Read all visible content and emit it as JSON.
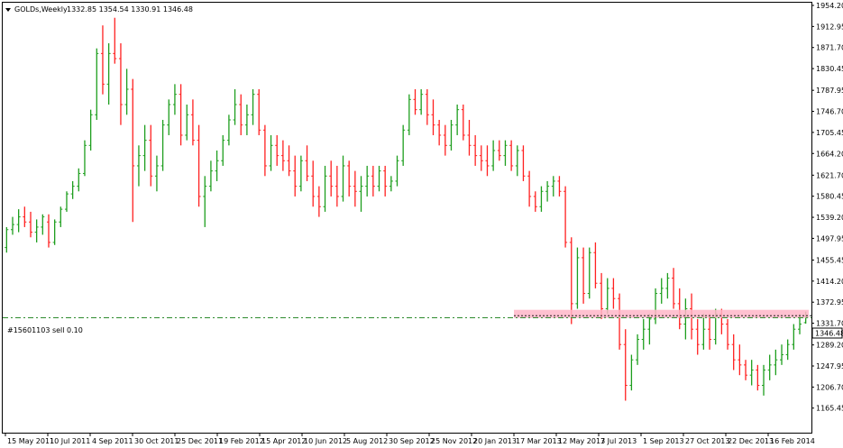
{
  "header": {
    "symbol": "GOLDs,Weekly",
    "ohlc": "1332.85 1354.54 1330.91 1346.48",
    "arrow_icon": "triangle-down-icon"
  },
  "colors": {
    "background": "#ffffff",
    "up_bar": "#1e9e1e",
    "down_bar": "#ff2020",
    "order_line": "#2e8b2e",
    "highlight_zone": "#ffb6c8",
    "price_line": "#000000",
    "price_box_bg": "#ffffff"
  },
  "order": {
    "label": "#15601103 sell 0.10",
    "price": 1342.5
  },
  "current_price": {
    "label": "1346.48",
    "value": 1346.48
  },
  "highlight_zone": {
    "from_date": "17 Mar 2013",
    "price_low": 1342,
    "price_high": 1358
  },
  "chart_data": {
    "type": "ohlc",
    "title": "",
    "xlabel": "",
    "ylabel": "",
    "ylim": [
      1165.0,
      1954.2
    ],
    "grid": false,
    "y_ticks": [
      "1954.20",
      "1912.95",
      "1871.70",
      "1830.45",
      "1787.95",
      "1746.70",
      "1705.45",
      "1664.20",
      "1621.70",
      "1580.45",
      "1539.20",
      "1497.95",
      "1455.45",
      "1414.20",
      "1372.95",
      "1331.70",
      "1289.20",
      "1247.95",
      "1206.70",
      "1165.45"
    ],
    "x_ticks": [
      "15 May 2011",
      "10 Jul 2011",
      "4 Sep 2011",
      "30 Oct 2011",
      "25 Dec 2011",
      "19 Feb 2012",
      "15 Apr 2012",
      "10 Jun 2012",
      "5 Aug 2012",
      "30 Sep 2012",
      "25 Nov 2012",
      "20 Jan 2013",
      "17 Mar 2013",
      "12 May 2013",
      "7 Jul 2013",
      "1 Sep 2013",
      "27 Oct 2013",
      "22 Dec 2013",
      "16 Feb 2014"
    ],
    "series": [
      {
        "values": [
          [
            1480,
            1520,
            1470,
            1515
          ],
          [
            1515,
            1540,
            1505,
            1525
          ],
          [
            1525,
            1555,
            1510,
            1540
          ],
          [
            1540,
            1560,
            1520,
            1530
          ],
          [
            1530,
            1550,
            1500,
            1510
          ],
          [
            1510,
            1535,
            1490,
            1520
          ],
          [
            1520,
            1545,
            1505,
            1540
          ],
          [
            1530,
            1545,
            1480,
            1490
          ],
          [
            1490,
            1535,
            1485,
            1530
          ],
          [
            1530,
            1560,
            1520,
            1555
          ],
          [
            1555,
            1590,
            1550,
            1585
          ],
          [
            1585,
            1610,
            1575,
            1600
          ],
          [
            1600,
            1635,
            1590,
            1625
          ],
          [
            1625,
            1690,
            1620,
            1680
          ],
          [
            1680,
            1750,
            1670,
            1740
          ],
          [
            1740,
            1870,
            1730,
            1860
          ],
          [
            1860,
            1915,
            1780,
            1800
          ],
          [
            1800,
            1880,
            1760,
            1860
          ],
          [
            1860,
            1930,
            1840,
            1850
          ],
          [
            1850,
            1880,
            1720,
            1760
          ],
          [
            1760,
            1830,
            1740,
            1790
          ],
          [
            1790,
            1810,
            1530,
            1640
          ],
          [
            1640,
            1680,
            1600,
            1660
          ],
          [
            1660,
            1720,
            1630,
            1690
          ],
          [
            1690,
            1720,
            1600,
            1620
          ],
          [
            1620,
            1660,
            1590,
            1640
          ],
          [
            1640,
            1730,
            1630,
            1720
          ],
          [
            1720,
            1770,
            1700,
            1760
          ],
          [
            1760,
            1800,
            1740,
            1780
          ],
          [
            1780,
            1800,
            1680,
            1700
          ],
          [
            1700,
            1760,
            1690,
            1740
          ],
          [
            1740,
            1770,
            1680,
            1690
          ],
          [
            1690,
            1720,
            1560,
            1580
          ],
          [
            1580,
            1620,
            1520,
            1600
          ],
          [
            1600,
            1650,
            1590,
            1630
          ],
          [
            1630,
            1670,
            1610,
            1650
          ],
          [
            1650,
            1700,
            1640,
            1690
          ],
          [
            1690,
            1740,
            1680,
            1730
          ],
          [
            1730,
            1790,
            1720,
            1760
          ],
          [
            1760,
            1780,
            1700,
            1720
          ],
          [
            1720,
            1760,
            1700,
            1740
          ],
          [
            1740,
            1790,
            1720,
            1780
          ],
          [
            1780,
            1790,
            1700,
            1710
          ],
          [
            1710,
            1720,
            1620,
            1640
          ],
          [
            1640,
            1700,
            1630,
            1680
          ],
          [
            1680,
            1700,
            1640,
            1660
          ],
          [
            1660,
            1690,
            1630,
            1650
          ],
          [
            1650,
            1680,
            1620,
            1630
          ],
          [
            1630,
            1660,
            1580,
            1600
          ],
          [
            1600,
            1660,
            1590,
            1650
          ],
          [
            1650,
            1680,
            1610,
            1620
          ],
          [
            1620,
            1650,
            1560,
            1580
          ],
          [
            1580,
            1600,
            1540,
            1560
          ],
          [
            1560,
            1640,
            1550,
            1620
          ],
          [
            1620,
            1650,
            1580,
            1600
          ],
          [
            1600,
            1640,
            1560,
            1580
          ],
          [
            1580,
            1660,
            1570,
            1640
          ],
          [
            1640,
            1650,
            1580,
            1600
          ],
          [
            1600,
            1630,
            1560,
            1590
          ],
          [
            1590,
            1620,
            1550,
            1600
          ],
          [
            1600,
            1640,
            1580,
            1620
          ],
          [
            1620,
            1640,
            1580,
            1600
          ],
          [
            1600,
            1640,
            1590,
            1630
          ],
          [
            1630,
            1640,
            1580,
            1600
          ],
          [
            1600,
            1620,
            1590,
            1610
          ],
          [
            1610,
            1660,
            1600,
            1650
          ],
          [
            1650,
            1720,
            1640,
            1710
          ],
          [
            1710,
            1780,
            1700,
            1770
          ],
          [
            1770,
            1790,
            1740,
            1750
          ],
          [
            1750,
            1790,
            1740,
            1780
          ],
          [
            1780,
            1790,
            1720,
            1740
          ],
          [
            1740,
            1770,
            1700,
            1720
          ],
          [
            1720,
            1730,
            1680,
            1700
          ],
          [
            1700,
            1720,
            1660,
            1680
          ],
          [
            1680,
            1730,
            1670,
            1720
          ],
          [
            1720,
            1760,
            1700,
            1750
          ],
          [
            1750,
            1760,
            1690,
            1700
          ],
          [
            1700,
            1730,
            1660,
            1680
          ],
          [
            1680,
            1700,
            1640,
            1660
          ],
          [
            1660,
            1680,
            1630,
            1650
          ],
          [
            1650,
            1680,
            1620,
            1640
          ],
          [
            1640,
            1690,
            1630,
            1670
          ],
          [
            1670,
            1690,
            1650,
            1660
          ],
          [
            1660,
            1690,
            1640,
            1680
          ],
          [
            1680,
            1690,
            1630,
            1640
          ],
          [
            1640,
            1680,
            1620,
            1670
          ],
          [
            1670,
            1680,
            1610,
            1620
          ],
          [
            1620,
            1630,
            1560,
            1580
          ],
          [
            1580,
            1590,
            1550,
            1560
          ],
          [
            1560,
            1600,
            1550,
            1590
          ],
          [
            1590,
            1610,
            1570,
            1600
          ],
          [
            1600,
            1620,
            1580,
            1610
          ],
          [
            1610,
            1620,
            1580,
            1590
          ],
          [
            1590,
            1600,
            1480,
            1490
          ],
          [
            1490,
            1500,
            1330,
            1370
          ],
          [
            1370,
            1480,
            1360,
            1460
          ],
          [
            1460,
            1480,
            1370,
            1390
          ],
          [
            1390,
            1480,
            1380,
            1470
          ],
          [
            1470,
            1490,
            1400,
            1410
          ],
          [
            1410,
            1430,
            1340,
            1360
          ],
          [
            1360,
            1420,
            1350,
            1400
          ],
          [
            1400,
            1420,
            1360,
            1380
          ],
          [
            1380,
            1390,
            1280,
            1290
          ],
          [
            1290,
            1320,
            1180,
            1210
          ],
          [
            1210,
            1270,
            1200,
            1260
          ],
          [
            1260,
            1310,
            1250,
            1300
          ],
          [
            1300,
            1340,
            1280,
            1320
          ],
          [
            1320,
            1350,
            1290,
            1340
          ],
          [
            1340,
            1400,
            1330,
            1390
          ],
          [
            1390,
            1420,
            1370,
            1400
          ],
          [
            1400,
            1430,
            1380,
            1420
          ],
          [
            1420,
            1440,
            1360,
            1370
          ],
          [
            1370,
            1400,
            1320,
            1330
          ],
          [
            1330,
            1380,
            1300,
            1360
          ],
          [
            1360,
            1390,
            1300,
            1320
          ],
          [
            1320,
            1340,
            1270,
            1290
          ],
          [
            1290,
            1350,
            1280,
            1320
          ],
          [
            1320,
            1350,
            1280,
            1300
          ],
          [
            1300,
            1360,
            1290,
            1350
          ],
          [
            1350,
            1360,
            1310,
            1330
          ],
          [
            1330,
            1340,
            1280,
            1290
          ],
          [
            1290,
            1310,
            1240,
            1260
          ],
          [
            1260,
            1290,
            1230,
            1250
          ],
          [
            1250,
            1260,
            1220,
            1230
          ],
          [
            1230,
            1260,
            1210,
            1240
          ],
          [
            1240,
            1250,
            1200,
            1210
          ],
          [
            1210,
            1250,
            1190,
            1240
          ],
          [
            1240,
            1270,
            1220,
            1250
          ],
          [
            1250,
            1280,
            1230,
            1260
          ],
          [
            1260,
            1290,
            1250,
            1270
          ],
          [
            1270,
            1300,
            1260,
            1290
          ],
          [
            1290,
            1330,
            1280,
            1320
          ],
          [
            1320,
            1350,
            1310,
            1330
          ],
          [
            1332.85,
            1354.54,
            1330.91,
            1346.48
          ]
        ]
      }
    ]
  }
}
